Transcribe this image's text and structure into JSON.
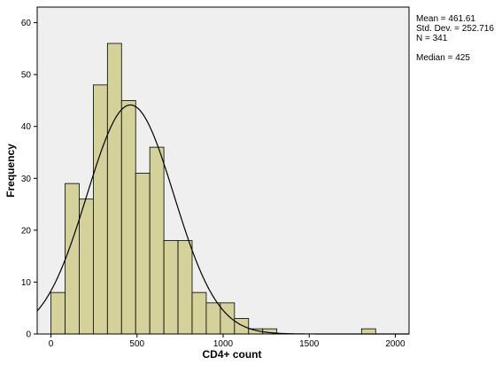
{
  "chart_data": {
    "type": "bar",
    "title": "",
    "xlabel": "CD4+ count",
    "ylabel": "Frequency",
    "xlim": [
      -80,
      2080
    ],
    "ylim": [
      0,
      63
    ],
    "x_ticks": [
      0,
      500,
      1000,
      1500,
      2000
    ],
    "y_ticks": [
      0,
      10,
      20,
      30,
      40,
      50,
      60
    ],
    "bin_width": 82,
    "bin_starts": [
      0,
      82,
      164,
      246,
      328,
      410,
      492,
      574,
      656,
      738,
      820,
      902,
      984,
      1066,
      1148,
      1230,
      1804
    ],
    "values": [
      8,
      29,
      26,
      48,
      56,
      45,
      31,
      36,
      18,
      18,
      8,
      6,
      6,
      3,
      1,
      1,
      1
    ],
    "normal_curve": {
      "mean": 461.61,
      "sd": 252.716,
      "n": 341
    },
    "bar_color": "#d4d19a",
    "plot_background": "#efefef",
    "curve_color": "#000000"
  },
  "stats": {
    "mean": "Mean = 461.61",
    "sd": "Std. Dev. = 252.716",
    "n": "N = 341",
    "median": "Median = 425"
  }
}
